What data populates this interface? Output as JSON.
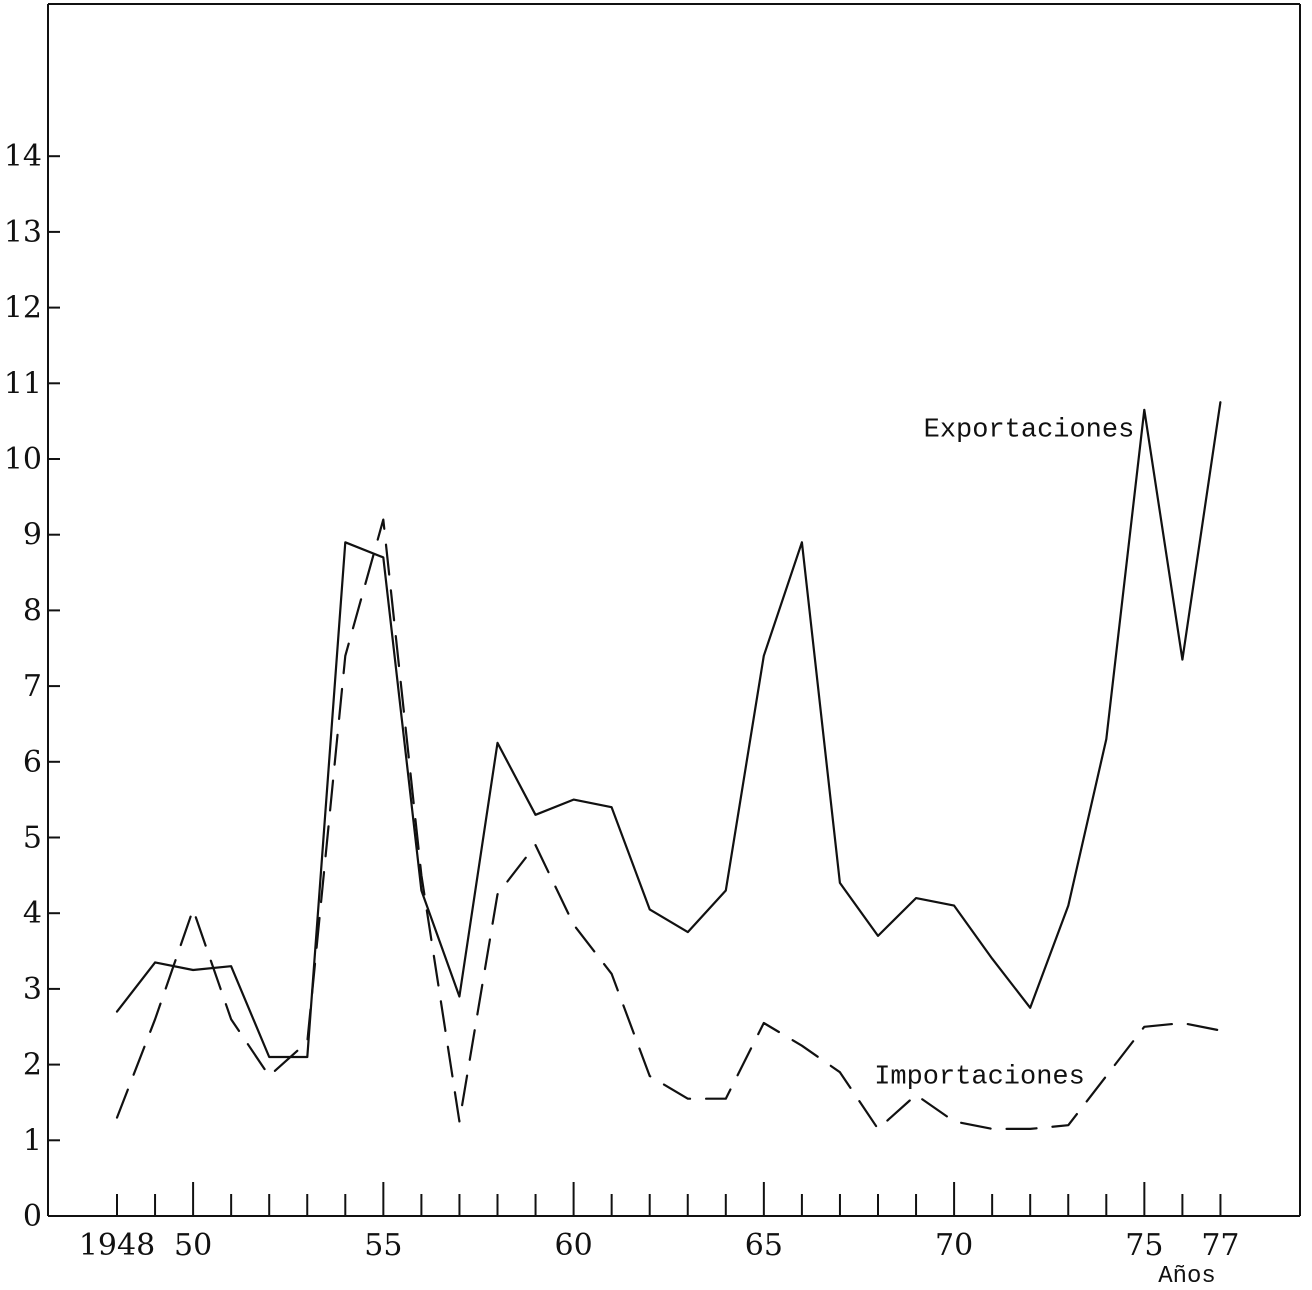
{
  "chart_data": {
    "type": "line",
    "xlabel": "Años",
    "ylabel": "",
    "xlim": [
      1948,
      1977
    ],
    "ylim": [
      0,
      14
    ],
    "grid": false,
    "y_ticks": [
      0,
      1,
      2,
      3,
      4,
      5,
      6,
      7,
      8,
      9,
      10,
      11,
      12,
      13,
      14
    ],
    "y_tick_labels": [
      "0",
      "1",
      "2",
      "3",
      "4",
      "5",
      "6",
      "7",
      "8",
      "9",
      "10",
      "11",
      "12",
      "13",
      "14"
    ],
    "x_ticks": [
      1948,
      1949,
      1950,
      1951,
      1952,
      1953,
      1954,
      1955,
      1956,
      1957,
      1958,
      1959,
      1960,
      1961,
      1962,
      1963,
      1964,
      1965,
      1966,
      1967,
      1968,
      1969,
      1970,
      1971,
      1972,
      1973,
      1974,
      1975,
      1976,
      1977
    ],
    "x_major_ticks": [
      1950,
      1955,
      1960,
      1965,
      1970,
      1975
    ],
    "x_tick_labels": [
      {
        "x": 1948,
        "label": "1948"
      },
      {
        "x": 1950,
        "label": "50"
      },
      {
        "x": 1955,
        "label": "55"
      },
      {
        "x": 1960,
        "label": "60"
      },
      {
        "x": 1965,
        "label": "65"
      },
      {
        "x": 1970,
        "label": "70"
      },
      {
        "x": 1975,
        "label": "75"
      },
      {
        "x": 1977,
        "label": "77"
      }
    ],
    "series": [
      {
        "name": "Exportaciones",
        "style": "solid",
        "label_at": [
          1969.2,
          10.3
        ],
        "x": [
          1948,
          1949,
          1950,
          1951,
          1952,
          1953,
          1954,
          1955,
          1956,
          1957,
          1958,
          1959,
          1960,
          1961,
          1962,
          1963,
          1964,
          1965,
          1966,
          1967,
          1968,
          1969,
          1970,
          1971,
          1972,
          1973,
          1974,
          1975,
          1976,
          1977
        ],
        "values": [
          2.7,
          3.35,
          3.25,
          3.3,
          2.1,
          2.1,
          8.9,
          8.7,
          4.3,
          2.9,
          6.25,
          5.3,
          5.5,
          5.4,
          4.05,
          3.75,
          4.3,
          7.4,
          8.9,
          4.4,
          3.7,
          4.2,
          4.1,
          3.4,
          2.75,
          4.1,
          6.3,
          10.65,
          7.35,
          10.75
        ]
      },
      {
        "name": "Importaciones",
        "style": "dashed",
        "label_at": [
          1967.9,
          1.75
        ],
        "x": [
          1948,
          1949,
          1950,
          1951,
          1952,
          1953,
          1954,
          1955,
          1956,
          1957,
          1958,
          1959,
          1960,
          1961,
          1962,
          1963,
          1964,
          1965,
          1966,
          1967,
          1968,
          1969,
          1970,
          1971,
          1972,
          1973,
          1974,
          1975,
          1976,
          1977
        ],
        "values": [
          1.3,
          2.6,
          4.05,
          2.6,
          1.85,
          2.3,
          7.4,
          9.2,
          4.5,
          1.25,
          4.25,
          4.9,
          3.85,
          3.2,
          1.85,
          1.55,
          1.55,
          2.55,
          2.25,
          1.9,
          1.15,
          1.6,
          1.25,
          1.15,
          1.15,
          1.2,
          1.85,
          2.5,
          2.55,
          2.45
        ]
      }
    ]
  }
}
